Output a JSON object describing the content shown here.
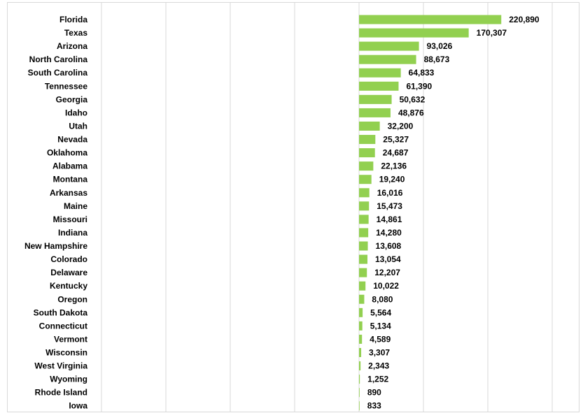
{
  "chart_data": {
    "type": "bar",
    "orientation": "horizontal",
    "categories": [
      "Florida",
      "Texas",
      "Arizona",
      "North Carolina",
      "South Carolina",
      "Tennessee",
      "Georgia",
      "Idaho",
      "Utah",
      "Nevada",
      "Oklahoma",
      "Alabama",
      "Montana",
      "Arkansas",
      "Maine",
      "Missouri",
      "Indiana",
      "New Hampshire",
      "Colorado",
      "Delaware",
      "Kentucky",
      "Oregon",
      "South Dakota",
      "Connecticut",
      "Vermont",
      "Wisconsin",
      "West Virginia",
      "Wyoming",
      "Rhode Island",
      "Iowa"
    ],
    "values": [
      220890,
      170307,
      93026,
      88673,
      64833,
      61390,
      50632,
      48876,
      32200,
      25327,
      24687,
      22136,
      19240,
      16016,
      15473,
      14861,
      14280,
      13608,
      13054,
      12207,
      10022,
      8080,
      5564,
      5134,
      4589,
      3307,
      2343,
      1252,
      890,
      833
    ],
    "value_labels": [
      "220,890",
      "170,307",
      "93,026",
      "88,673",
      "64,833",
      "61,390",
      "50,632",
      "48,876",
      "32,200",
      "25,327",
      "24,687",
      "22,136",
      "19,240",
      "16,016",
      "15,473",
      "14,861",
      "14,280",
      "13,608",
      "13,054",
      "12,207",
      "10,022",
      "8,080",
      "5,564",
      "5,134",
      "4,589",
      "3,307",
      "2,343",
      "1,252",
      "890",
      "833"
    ],
    "xlim": [
      -500000,
      300000
    ],
    "gridline_values": [
      -400000,
      -300000,
      -200000,
      -100000,
      0,
      100000,
      200000,
      300000
    ],
    "grid": true,
    "bar_color": "#92d050",
    "gridline_color": "#d9d9d9",
    "title": "",
    "xlabel": "",
    "ylabel": ""
  }
}
